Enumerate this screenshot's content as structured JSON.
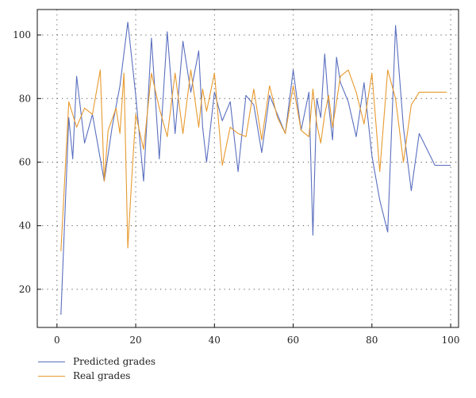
{
  "chart_data": {
    "type": "line",
    "title": "",
    "xlabel": "",
    "ylabel": "",
    "xlim": [
      -5,
      102
    ],
    "ylim": [
      8,
      108
    ],
    "x_ticks": [
      0,
      20,
      40,
      60,
      80,
      100
    ],
    "y_ticks": [
      20,
      40,
      60,
      80,
      100
    ],
    "grid": true,
    "legend_position": "bottom-left",
    "series": [
      {
        "name": "Predicted grades",
        "color": "#5a6fbf",
        "x": [
          1,
          3,
          4,
          5,
          7,
          9,
          12,
          14,
          16,
          18,
          20,
          22,
          24,
          26,
          28,
          30,
          32,
          34,
          36,
          37,
          38,
          40,
          42,
          44,
          46,
          48,
          50,
          52,
          54,
          56,
          58,
          60,
          62,
          64,
          65,
          66,
          67,
          68,
          69,
          70,
          71,
          72,
          74,
          76,
          78,
          80,
          82,
          84,
          86,
          88,
          90,
          92,
          94,
          96,
          98,
          100
        ],
        "values": [
          12,
          74,
          61,
          87,
          66,
          75,
          54,
          71,
          84,
          104,
          81,
          54,
          99,
          61,
          101,
          69,
          98,
          82,
          95,
          71,
          60,
          82,
          73,
          79,
          57,
          81,
          78,
          63,
          81,
          75,
          69,
          89,
          70,
          82,
          37,
          80,
          74,
          94,
          78,
          67,
          93,
          85,
          79,
          68,
          85,
          62,
          48,
          38,
          103,
          71,
          51,
          69,
          64,
          59,
          59,
          59
        ]
      },
      {
        "name": "Real grades",
        "color": "#e69a2e",
        "x": [
          1,
          3,
          5,
          7,
          9,
          11,
          12,
          13,
          15,
          16,
          17,
          18,
          19,
          20,
          22,
          24,
          26,
          28,
          30,
          32,
          34,
          36,
          37,
          38,
          40,
          42,
          44,
          46,
          48,
          50,
          52,
          54,
          56,
          58,
          60,
          62,
          64,
          65,
          66,
          67,
          68,
          69,
          70,
          72,
          74,
          76,
          78,
          80,
          82,
          84,
          86,
          88,
          90,
          92,
          94,
          96,
          98,
          99
        ],
        "values": [
          32,
          79,
          71,
          77,
          75,
          89,
          54,
          70,
          77,
          69,
          88,
          33,
          55,
          75,
          64,
          88,
          77,
          68,
          88,
          69,
          89,
          71,
          83,
          76,
          88,
          59,
          71,
          69,
          68,
          83,
          67,
          84,
          74,
          69,
          84,
          70,
          68,
          83,
          72,
          66,
          75,
          81,
          71,
          87,
          89,
          82,
          72,
          88,
          57,
          89,
          80,
          60,
          78,
          82,
          82,
          82,
          82,
          82
        ]
      }
    ]
  }
}
